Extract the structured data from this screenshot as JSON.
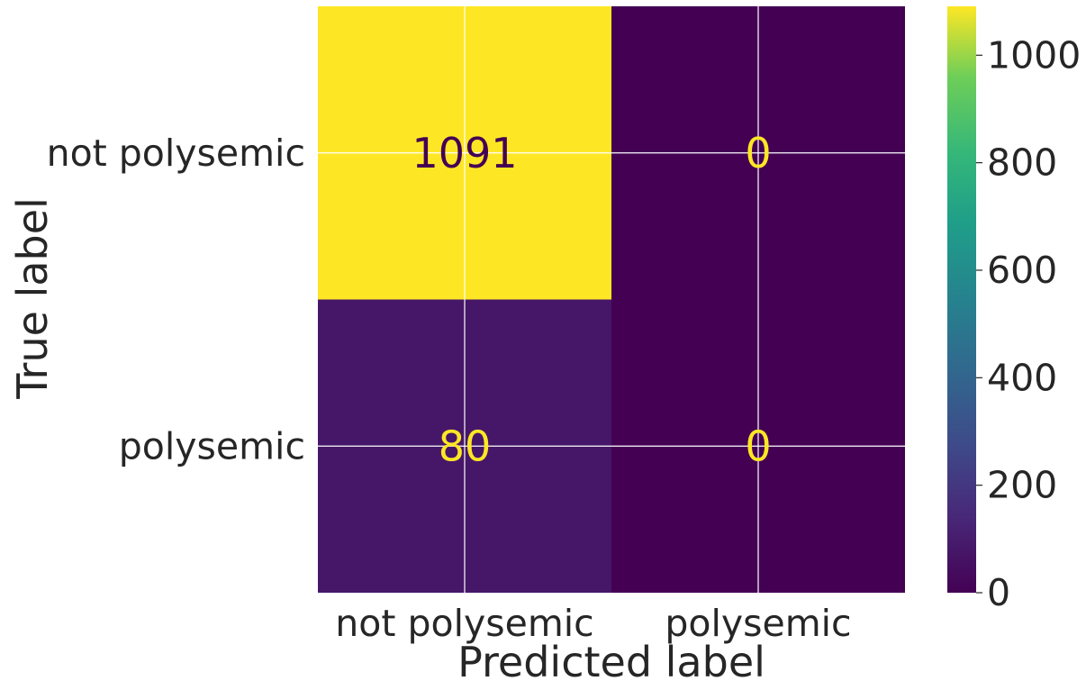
{
  "chart_data": {
    "type": "heatmap",
    "title": "",
    "xlabel": "Predicted label",
    "ylabel": "True label",
    "x_categories": [
      "not polysemic",
      "polysemic"
    ],
    "y_categories": [
      "not polysemic",
      "polysemic"
    ],
    "values": [
      [
        1091,
        0
      ],
      [
        80,
        0
      ]
    ],
    "colormap": "viridis",
    "colorbar": {
      "min": 0,
      "max": 1091,
      "ticks": [
        0,
        200,
        400,
        600,
        800,
        1000
      ]
    },
    "grid": true,
    "text_colors": {
      "on_light": "#440154",
      "on_dark": "#fde725"
    }
  }
}
